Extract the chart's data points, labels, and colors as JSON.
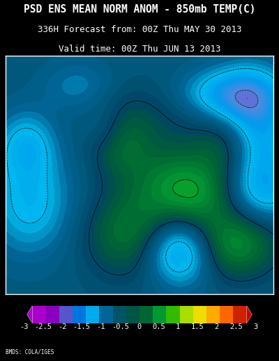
{
  "title_line1": "PSD ENS MEAN NORM ANOM - 850mb TEMP(C)",
  "title_line2": "336H Forecast from: 00Z Thu MAY 30 2013",
  "title_line3": "Valid time: 00Z Thu JUN 13 2013",
  "credit": "BMDS: COLA/IGES",
  "bg_color": "#000000",
  "map_border_color": "#FFFFFF",
  "title_color": "#FFFFFF",
  "title_fontsize": 10.5,
  "subtitle_fontsize": 9.0,
  "colorbar_tick_labels": [
    "-3",
    "-2.5",
    "-2",
    "-1.5",
    "-1",
    "-0.5",
    "0",
    "0.5",
    "1",
    "1.5",
    "2",
    "2.5",
    "3"
  ],
  "cmap_colors": [
    [
      0.0,
      "#AA00CC"
    ],
    [
      0.1,
      "#8800BB"
    ],
    [
      0.167,
      "#5588DD"
    ],
    [
      0.25,
      "#0099EE"
    ],
    [
      0.333,
      "#00BBEE"
    ],
    [
      0.4,
      "#006699"
    ],
    [
      0.458,
      "#005577"
    ],
    [
      0.5,
      "#004466"
    ],
    [
      0.542,
      "#005544"
    ],
    [
      0.583,
      "#006633"
    ],
    [
      0.667,
      "#009933"
    ],
    [
      0.75,
      "#33CC00"
    ],
    [
      0.833,
      "#AADD00"
    ],
    [
      0.875,
      "#EEDD00"
    ],
    [
      0.917,
      "#FFAA00"
    ],
    [
      0.958,
      "#FF6600"
    ],
    [
      1.0,
      "#CC0000"
    ]
  ],
  "cbar_seg_colors": [
    "#AA00CC",
    "#8800BB",
    "#5555CC",
    "#0077DD",
    "#00AAEE",
    "#006699",
    "#005566",
    "#005544",
    "#006633",
    "#009933",
    "#33BB00",
    "#AADD00",
    "#EEDD00",
    "#FFAA00",
    "#FF6600",
    "#CC2200"
  ],
  "lon_min": -180,
  "lon_max": -50,
  "lat_min": 5,
  "lat_max": 85,
  "anomaly_centers": [
    {
      "lon": -125,
      "lat": 56,
      "amp": 0.8,
      "sx": 10,
      "sy": 8,
      "sign": 1
    },
    {
      "lon": -100,
      "lat": 42,
      "amp": 0.9,
      "sx": 15,
      "sy": 10,
      "sign": 1
    },
    {
      "lon": -85,
      "lat": 38,
      "amp": 0.7,
      "sx": 12,
      "sy": 8,
      "sign": 1
    },
    {
      "lon": -75,
      "lat": 55,
      "amp": 0.5,
      "sx": 10,
      "sy": 8,
      "sign": 1
    },
    {
      "lon": -60,
      "lat": 70,
      "amp": -1.2,
      "sx": 12,
      "sy": 8,
      "sign": -1
    },
    {
      "lon": -75,
      "lat": 72,
      "amp": -0.9,
      "sx": 15,
      "sy": 6,
      "sign": -1
    },
    {
      "lon": -55,
      "lat": 55,
      "amp": -0.7,
      "sx": 10,
      "sy": 8,
      "sign": -1
    },
    {
      "lon": -120,
      "lat": 25,
      "amp": 0.9,
      "sx": 15,
      "sy": 10,
      "sign": 1
    },
    {
      "lon": -95,
      "lat": 20,
      "amp": -1.5,
      "sx": 12,
      "sy": 8,
      "sign": -1
    },
    {
      "lon": -70,
      "lat": 22,
      "amp": 1.2,
      "sx": 15,
      "sy": 8,
      "sign": 1
    },
    {
      "lon": -170,
      "lat": 55,
      "amp": -0.8,
      "sx": 10,
      "sy": 8,
      "sign": -1
    },
    {
      "lon": -168,
      "lat": 35,
      "amp": -0.8,
      "sx": 15,
      "sy": 12,
      "sign": -1
    },
    {
      "lon": -55,
      "lat": 40,
      "amp": -1.0,
      "sx": 12,
      "sy": 8,
      "sign": -1
    },
    {
      "lon": -130,
      "lat": 60,
      "amp": -0.5,
      "sx": 8,
      "sy": 6,
      "sign": -1
    },
    {
      "lon": -110,
      "lat": 65,
      "amp": 0.3,
      "sx": 18,
      "sy": 8,
      "sign": 1
    },
    {
      "lon": -145,
      "lat": 75,
      "amp": -0.4,
      "sx": 12,
      "sy": 6,
      "sign": -1
    }
  ]
}
